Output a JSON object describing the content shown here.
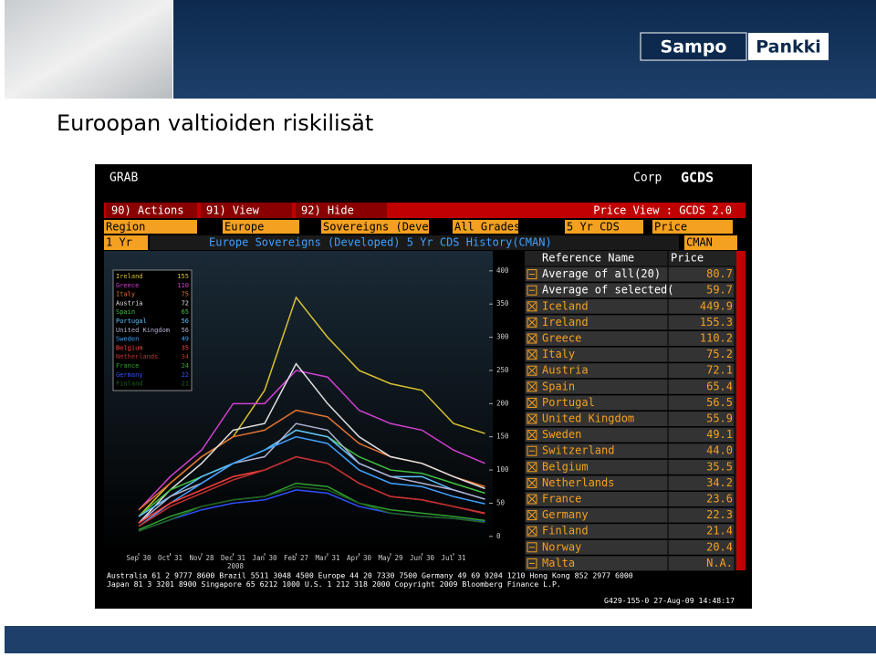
{
  "slide": {
    "title": "Euroopan valtioiden riskilisät",
    "logo": [
      "Sampo",
      "Pankki"
    ]
  },
  "terminal": {
    "header": [
      "GRAB",
      "Corp",
      "GCDS"
    ],
    "menu": [
      "90) Actions",
      "91) View",
      "92) Hide"
    ],
    "view": "Price View : GCDS 2.0",
    "fields": [
      "Region",
      "Europe",
      "Sovereigns (Deve",
      "All Grades",
      "5 Yr CDS",
      "Price"
    ],
    "period": "1 Yr",
    "chart_title": "Europe Sovereigns (Developed) 5 Yr CDS History(CMAN)",
    "source": "CMAN",
    "table": {
      "headers": [
        "Reference Name",
        "Price"
      ],
      "rows": [
        {
          "name": "Average of all(20)",
          "price": "80.7",
          "checked": false
        },
        {
          "name": "Average of selected(",
          "price": "59.7",
          "checked": false
        },
        {
          "name": "Iceland",
          "price": "449.9",
          "checked": true
        },
        {
          "name": "Ireland",
          "price": "155.3",
          "checked": true
        },
        {
          "name": "Greece",
          "price": "110.2",
          "checked": true
        },
        {
          "name": "Italy",
          "price": "75.2",
          "checked": true
        },
        {
          "name": "Austria",
          "price": "72.1",
          "checked": true
        },
        {
          "name": "Spain",
          "price": "65.4",
          "checked": true
        },
        {
          "name": "Portugal",
          "price": "56.5",
          "checked": true
        },
        {
          "name": "United Kingdom",
          "price": "55.9",
          "checked": true
        },
        {
          "name": "Sweden",
          "price": "49.1",
          "checked": true
        },
        {
          "name": "Switzerland",
          "price": "44.0",
          "checked": false
        },
        {
          "name": "Belgium",
          "price": "35.5",
          "checked": true
        },
        {
          "name": "Netherlands",
          "price": "34.2",
          "checked": true
        },
        {
          "name": "France",
          "price": "23.6",
          "checked": true
        },
        {
          "name": "Germany",
          "price": "22.3",
          "checked": true
        },
        {
          "name": "Finland",
          "price": "21.4",
          "checked": true
        },
        {
          "name": "Norway",
          "price": "20.4",
          "checked": false
        },
        {
          "name": "Malta",
          "price": "N.A.",
          "checked": false
        }
      ]
    },
    "footer": [
      "Australia 61 2 9777 8600 Brazil 5511 3048 4500 Europe 44 20 7330 7500 Germany 49 69 9204 1210 Hong Kong 852 2977 6000",
      "Japan 81 3 3201 8900        Singapore 65 6212 1000        U.S. 1 212 318 2000        Copyright 2009 Bloomberg Finance L.P.",
      "G429-155-0 27-Aug-09 14:48:17"
    ]
  },
  "chart_data": {
    "type": "line",
    "categories": [
      "Sep 30",
      "Oct 31",
      "Nov 28",
      "Dec 31",
      "Jan 30",
      "Feb 27",
      "Mar 31",
      "Apr 30",
      "May 29",
      "Jun 30",
      "Jul 31",
      null
    ],
    "year_label": "2008",
    "ylim": [
      -25,
      430
    ],
    "yticks": [
      0,
      50,
      100,
      150,
      200,
      250,
      300,
      350,
      400
    ],
    "series": [
      {
        "name": "Ireland",
        "color": "#d8c030",
        "legend_value": 155,
        "values": [
          30,
          80,
          120,
          150,
          220,
          360,
          300,
          250,
          230,
          220,
          170,
          155
        ]
      },
      {
        "name": "Greece",
        "color": "#d040d0",
        "legend_value": 110,
        "values": [
          40,
          90,
          130,
          200,
          200,
          250,
          240,
          190,
          170,
          160,
          130,
          110
        ]
      },
      {
        "name": "Italy",
        "color": "#e07030",
        "legend_value": 75,
        "values": [
          40,
          80,
          120,
          150,
          160,
          190,
          180,
          140,
          120,
          110,
          90,
          75
        ]
      },
      {
        "name": "Austria",
        "color": "#e0e0e0",
        "legend_value": 72,
        "values": [
          20,
          70,
          110,
          160,
          170,
          260,
          200,
          150,
          120,
          110,
          90,
          72
        ]
      },
      {
        "name": "Spain",
        "color": "#40c040",
        "legend_value": 65,
        "values": [
          30,
          70,
          90,
          110,
          130,
          160,
          150,
          120,
          100,
          95,
          80,
          65
        ]
      },
      {
        "name": "Portugal",
        "color": "#60c0ff",
        "legend_value": 56,
        "values": [
          30,
          60,
          90,
          110,
          130,
          160,
          150,
          110,
          90,
          90,
          70,
          56
        ]
      },
      {
        "name": "United Kingdom",
        "color": "#b0b0d0",
        "legend_value": 56,
        "values": [
          20,
          60,
          80,
          110,
          120,
          170,
          160,
          110,
          90,
          80,
          70,
          56
        ]
      },
      {
        "name": "Sweden",
        "color": "#40a0ff",
        "legend_value": 49,
        "values": [
          15,
          50,
          80,
          110,
          130,
          150,
          140,
          100,
          80,
          75,
          60,
          49
        ]
      },
      {
        "name": "Belgium",
        "color": "#ff4040",
        "legend_value": 35,
        "values": [
          20,
          50,
          70,
          90,
          100,
          120,
          110,
          80,
          60,
          55,
          45,
          35
        ]
      },
      {
        "name": "Netherlands",
        "color": "#c03030",
        "legend_value": 34,
        "values": [
          15,
          45,
          65,
          85,
          100,
          120,
          110,
          80,
          60,
          55,
          45,
          34
        ]
      },
      {
        "name": "France",
        "color": "#30a030",
        "legend_value": 24,
        "values": [
          10,
          30,
          45,
          55,
          60,
          80,
          75,
          50,
          40,
          35,
          30,
          24
        ]
      },
      {
        "name": "Germany",
        "color": "#3050ff",
        "legend_value": 22,
        "values": [
          8,
          25,
          40,
          50,
          55,
          70,
          65,
          45,
          35,
          30,
          27,
          22
        ]
      },
      {
        "name": "Finland",
        "color": "#206020",
        "legend_value": 21,
        "values": [
          8,
          25,
          45,
          55,
          60,
          75,
          70,
          50,
          35,
          30,
          27,
          21
        ]
      }
    ]
  }
}
